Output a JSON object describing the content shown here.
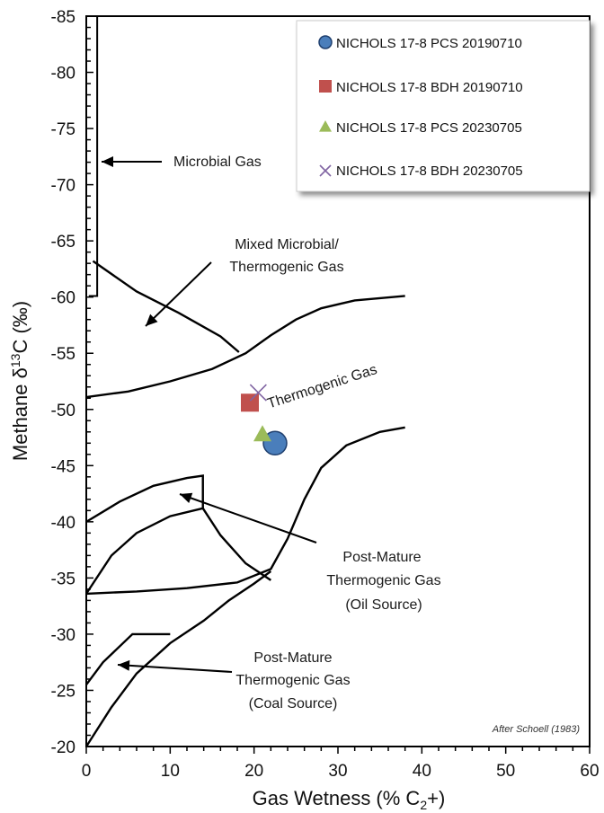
{
  "chart_data": {
    "type": "scatter",
    "xlabel": "Gas Wetness (% C",
    "xlabel_sub": "2",
    "xlabel_tail": "+)",
    "ylabel_pre": "Methane  δ",
    "ylabel_sup": "13",
    "ylabel_post": "C (‰)",
    "xlim": [
      0,
      60
    ],
    "ylim": [
      -20,
      -85
    ],
    "xticks": [
      "0",
      "10",
      "20",
      "30",
      "40",
      "50",
      "60"
    ],
    "yticks": [
      "-85",
      "-80",
      "-75",
      "-70",
      "-65",
      "-60",
      "-55",
      "-50",
      "-45",
      "-40",
      "-35",
      "-30",
      "-25",
      "-20"
    ],
    "grid": false,
    "legend_position": "top-right",
    "series": [
      {
        "name": "NICHOLS 17-8 PCS 20190710",
        "marker": "circle",
        "color": "#4a7ebb",
        "x": [
          22.5
        ],
        "y": [
          -47
        ]
      },
      {
        "name": "NICHOLS 17-8 BDH 20190710",
        "marker": "square",
        "color": "#c0504d",
        "x": [
          19.5
        ],
        "y": [
          -50.6
        ]
      },
      {
        "name": "NICHOLS 17-8 PCS 20230705",
        "marker": "triangle",
        "color": "#9bbb59",
        "x": [
          21
        ],
        "y": [
          -47.8
        ]
      },
      {
        "name": "NICHOLS 17-8 BDH 20230705",
        "marker": "x",
        "color": "#8064a2",
        "x": [
          20.5
        ],
        "y": [
          -51.5
        ]
      }
    ],
    "annotations": {
      "microbial": "Microbial Gas",
      "mixed_1": "Mixed Microbial/",
      "mixed_2": "Thermogenic Gas",
      "thermogenic": "Thermogenic Gas",
      "oil_1": "Post-Mature",
      "oil_2": "Thermogenic Gas",
      "oil_3": "(Oil Source)",
      "coal_1": "Post-Mature",
      "coal_2": "Thermogenic Gas",
      "coal_3": "(Coal Source)",
      "credit": "After Schoell (1983)"
    }
  }
}
